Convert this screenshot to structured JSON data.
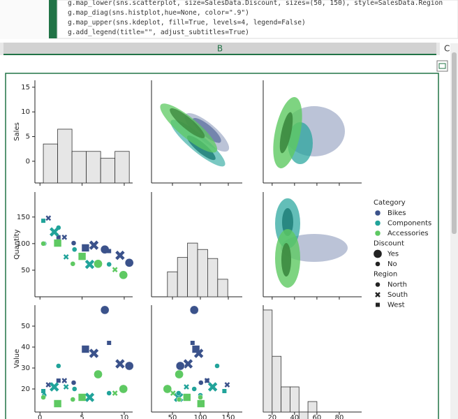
{
  "code_lines": [
    "g.map_lower(sns.scatterplot, size=SalesData.Discount, sizes=(50, 150), style=SalesData.Region",
    "g.map_diag(sns.histplot,hue=None, color=\".9\")",
    "g.map_upper(sns.kdeplot, fill=True, levels=4, legend=False)",
    "g.add_legend(title=\"\", adjust_subtitles=True)"
  ],
  "column_header": "B",
  "next_column_header": "C",
  "chart_data": {
    "type": "pairplot",
    "hist_color": "#e6e6e6",
    "variables": [
      {
        "label": "Sales",
        "xlim": [
          -0.6,
          11
        ],
        "xticks": [
          0,
          5,
          10
        ],
        "ylim": [
          -4.4,
          16.4
        ],
        "yticks": [
          0,
          5,
          10,
          15
        ],
        "values": [
          7.7,
          8.2,
          5.4,
          6.4,
          9.5,
          10.6,
          2.2,
          2.9,
          4.0,
          1.0,
          2.2,
          1.7,
          3.1,
          0.5,
          0.4,
          5.9,
          8.2,
          4.1,
          2.1,
          5.0,
          3.9,
          6.9,
          8.9,
          9.9,
          0.4
        ],
        "hist": {
          "bins": [
            0.4,
            2.1,
            3.8,
            5.5,
            7.2,
            8.9,
            10.6
          ],
          "values": [
            3.5,
            6.5,
            2,
            2,
            0.6,
            2
          ]
        }
      },
      {
        "label": "Quantity",
        "xlim": [
          12.5,
          175
        ],
        "xticks": [
          50,
          100,
          150
        ],
        "ylim": [
          0,
          197
        ],
        "yticks": [
          50,
          100,
          150
        ],
        "values": [
          89,
          86,
          92,
          97,
          78,
          64,
          112,
          112,
          101,
          148,
          130,
          122,
          75,
          100,
          143,
          61,
          61,
          89,
          101,
          76,
          62,
          62,
          51,
          41,
          100
        ],
        "hist": {
          "bins": [
            41,
            59,
            77,
            95,
            113,
            131,
            149
          ],
          "values": [
            47,
            74,
            101,
            89,
            72,
            33
          ]
        }
      },
      {
        "label": "Value",
        "xlim": [
          12,
          100
        ],
        "xticks": [
          20,
          40,
          60,
          80
        ],
        "ylim": [
          9,
          60
        ],
        "yticks": [
          20,
          30,
          40,
          50
        ],
        "values": [
          57.7,
          42,
          39,
          37,
          32,
          31,
          24,
          24,
          23,
          22,
          31,
          21,
          21,
          17,
          19,
          16,
          18,
          20,
          13,
          16,
          15,
          27,
          18,
          20,
          16
        ],
        "hist": {
          "bins": [
            12,
            20,
            28,
            36,
            44,
            52,
            60
          ],
          "values": [
            57.7,
            35.6,
            21,
            21,
            0,
            14
          ]
        }
      }
    ],
    "category": [
      "Bikes",
      "Bikes",
      "Bikes",
      "Bikes",
      "Bikes",
      "Bikes",
      "Bikes",
      "Bikes",
      "Bikes",
      "Bikes",
      "Components",
      "Components",
      "Components",
      "Components",
      "Components",
      "Components",
      "Components",
      "Components",
      "Accessories",
      "Accessories",
      "Accessories",
      "Accessories",
      "Accessories",
      "Accessories",
      "Accessories"
    ],
    "discount": [
      "Yes",
      "No",
      "Yes",
      "Yes",
      "Yes",
      "Yes",
      "No",
      "No",
      "No",
      "No",
      "No",
      "Yes",
      "No",
      "No",
      "No",
      "Yes",
      "No",
      "No",
      "Yes",
      "Yes",
      "No",
      "Yes",
      "No",
      "Yes",
      "No"
    ],
    "region": [
      "North",
      "West",
      "West",
      "South",
      "South",
      "North",
      "West",
      "South",
      "North",
      "South",
      "North",
      "South",
      "South",
      "North",
      "West",
      "South",
      "North",
      "North",
      "West",
      "West",
      "North",
      "North",
      "South",
      "North",
      "North"
    ],
    "legend": {
      "hue_title": "Category",
      "hue": [
        {
          "name": "Bikes",
          "color": "#3b528b"
        },
        {
          "name": "Components",
          "color": "#21a39a"
        },
        {
          "name": "Accessories",
          "color": "#5ec962"
        }
      ],
      "size_title": "Discount",
      "sizes": [
        {
          "name": "Yes",
          "size": 150
        },
        {
          "name": "No",
          "size": 50
        }
      ],
      "style_title": "Region",
      "styles": [
        {
          "name": "North",
          "marker": "o"
        },
        {
          "name": "South",
          "marker": "X"
        },
        {
          "name": "West",
          "marker": "s"
        }
      ]
    }
  }
}
